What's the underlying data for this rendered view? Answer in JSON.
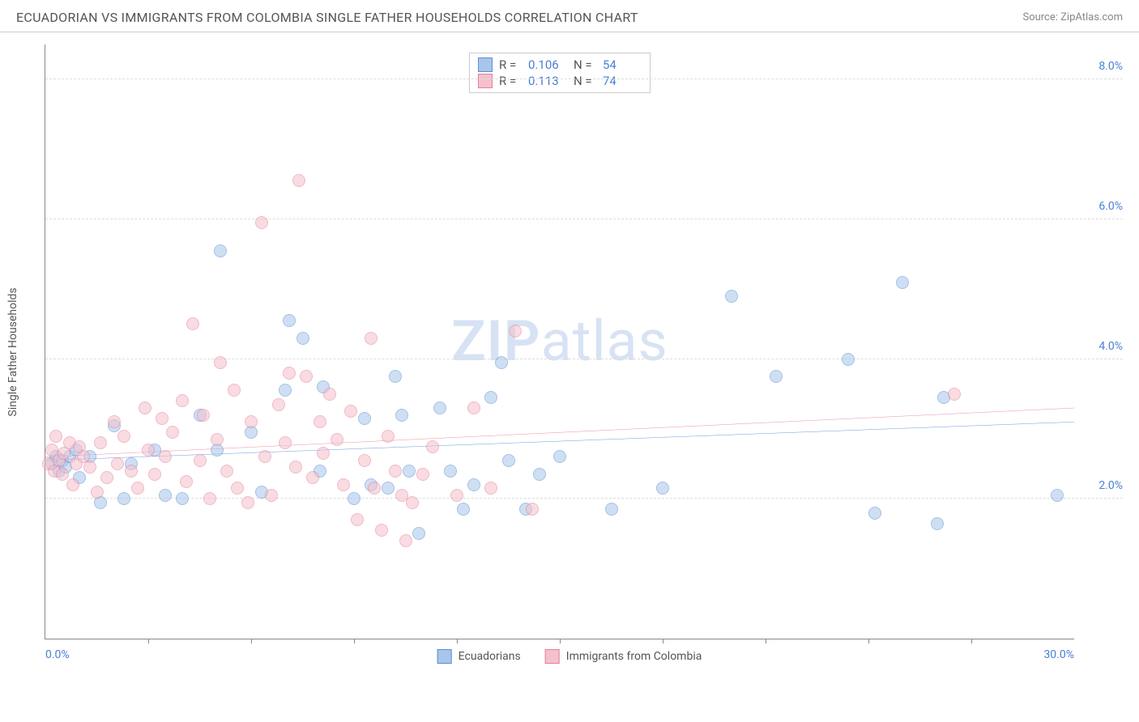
{
  "header": {
    "title": "ECUADORIAN VS IMMIGRANTS FROM COLOMBIA SINGLE FATHER HOUSEHOLDS CORRELATION CHART",
    "source": "Source: ZipAtlas.com"
  },
  "chart": {
    "type": "scatter",
    "ylabel": "Single Father Households",
    "watermark": "ZIPatlas",
    "background_color": "#ffffff",
    "grid_color": "#dddddd",
    "axis_color": "#888888",
    "tick_color": "#4a7fd4",
    "xlim": [
      0,
      30
    ],
    "ylim": [
      0,
      8.5
    ],
    "xticks": [
      {
        "v": 0,
        "label": "0.0%"
      },
      {
        "v": 30,
        "label": "30.0%"
      }
    ],
    "xtick_marks": [
      3,
      6,
      9,
      12,
      15,
      18,
      21,
      24,
      27
    ],
    "yticks": [
      {
        "v": 2,
        "label": "2.0%"
      },
      {
        "v": 4,
        "label": "4.0%"
      },
      {
        "v": 6,
        "label": "6.0%"
      },
      {
        "v": 8,
        "label": "8.0%"
      }
    ],
    "marker_radius": 8,
    "marker_opacity": 0.55,
    "series": [
      {
        "id": "ecuadorians",
        "label": "Ecuadorians",
        "fill": "#a8c5ea",
        "stroke": "#5a8fd4",
        "line_color": "#2e6fd0",
        "line_width": 2,
        "R": "0.106",
        "N": "54",
        "trend": {
          "y0": 2.55,
          "y1": 3.1
        },
        "points": [
          [
            0.2,
            2.5
          ],
          [
            0.3,
            2.6
          ],
          [
            0.4,
            2.4
          ],
          [
            0.5,
            2.55
          ],
          [
            0.6,
            2.45
          ],
          [
            0.7,
            2.6
          ],
          [
            0.9,
            2.7
          ],
          [
            1.0,
            2.3
          ],
          [
            1.3,
            2.6
          ],
          [
            1.6,
            1.95
          ],
          [
            2.0,
            3.05
          ],
          [
            2.3,
            2.0
          ],
          [
            2.5,
            2.5
          ],
          [
            3.2,
            2.7
          ],
          [
            3.5,
            2.05
          ],
          [
            4.0,
            2.0
          ],
          [
            4.5,
            3.2
          ],
          [
            5.0,
            2.7
          ],
          [
            5.1,
            5.55
          ],
          [
            6.0,
            2.95
          ],
          [
            6.3,
            2.1
          ],
          [
            7.0,
            3.55
          ],
          [
            7.1,
            4.55
          ],
          [
            7.5,
            4.3
          ],
          [
            8.0,
            2.4
          ],
          [
            8.1,
            3.6
          ],
          [
            9.0,
            2.0
          ],
          [
            9.3,
            3.15
          ],
          [
            9.5,
            2.2
          ],
          [
            10.0,
            2.15
          ],
          [
            10.2,
            3.75
          ],
          [
            10.4,
            3.2
          ],
          [
            10.6,
            2.4
          ],
          [
            10.9,
            1.5
          ],
          [
            11.5,
            3.3
          ],
          [
            11.8,
            2.4
          ],
          [
            12.2,
            1.85
          ],
          [
            12.5,
            2.2
          ],
          [
            13.0,
            3.45
          ],
          [
            13.3,
            3.95
          ],
          [
            13.5,
            2.55
          ],
          [
            14.0,
            1.85
          ],
          [
            14.4,
            2.35
          ],
          [
            15.0,
            2.6
          ],
          [
            16.5,
            1.85
          ],
          [
            18.0,
            2.15
          ],
          [
            20.0,
            4.9
          ],
          [
            21.3,
            3.75
          ],
          [
            23.4,
            4.0
          ],
          [
            24.2,
            1.8
          ],
          [
            25.0,
            5.1
          ],
          [
            26.0,
            1.65
          ],
          [
            26.2,
            3.45
          ],
          [
            29.5,
            2.05
          ]
        ]
      },
      {
        "id": "colombia",
        "label": "Immigrants from Colombia",
        "fill": "#f4c1cc",
        "stroke": "#e77f9a",
        "line_color": "#e2607f",
        "line_width": 2,
        "R": "0.113",
        "N": "74",
        "trend": {
          "y0": 2.6,
          "y1": 3.3
        },
        "points": [
          [
            0.1,
            2.5
          ],
          [
            0.2,
            2.7
          ],
          [
            0.25,
            2.4
          ],
          [
            0.3,
            2.9
          ],
          [
            0.4,
            2.55
          ],
          [
            0.5,
            2.35
          ],
          [
            0.55,
            2.65
          ],
          [
            0.7,
            2.8
          ],
          [
            0.8,
            2.2
          ],
          [
            0.9,
            2.5
          ],
          [
            1.0,
            2.75
          ],
          [
            1.1,
            2.6
          ],
          [
            1.3,
            2.45
          ],
          [
            1.5,
            2.1
          ],
          [
            1.6,
            2.8
          ],
          [
            1.8,
            2.3
          ],
          [
            2.0,
            3.1
          ],
          [
            2.1,
            2.5
          ],
          [
            2.3,
            2.9
          ],
          [
            2.5,
            2.4
          ],
          [
            2.7,
            2.15
          ],
          [
            2.9,
            3.3
          ],
          [
            3.0,
            2.7
          ],
          [
            3.2,
            2.35
          ],
          [
            3.4,
            3.15
          ],
          [
            3.5,
            2.6
          ],
          [
            3.7,
            2.95
          ],
          [
            4.0,
            3.4
          ],
          [
            4.1,
            2.25
          ],
          [
            4.3,
            4.5
          ],
          [
            4.5,
            2.55
          ],
          [
            4.6,
            3.2
          ],
          [
            4.8,
            2.0
          ],
          [
            5.0,
            2.85
          ],
          [
            5.1,
            3.95
          ],
          [
            5.3,
            2.4
          ],
          [
            5.5,
            3.55
          ],
          [
            5.6,
            2.15
          ],
          [
            5.9,
            1.95
          ],
          [
            6.0,
            3.1
          ],
          [
            6.3,
            5.95
          ],
          [
            6.4,
            2.6
          ],
          [
            6.6,
            2.05
          ],
          [
            6.8,
            3.35
          ],
          [
            7.0,
            2.8
          ],
          [
            7.1,
            3.8
          ],
          [
            7.3,
            2.45
          ],
          [
            7.4,
            6.55
          ],
          [
            7.6,
            3.75
          ],
          [
            7.8,
            2.3
          ],
          [
            8.0,
            3.1
          ],
          [
            8.1,
            2.65
          ],
          [
            8.3,
            3.5
          ],
          [
            8.5,
            2.85
          ],
          [
            8.7,
            2.2
          ],
          [
            8.9,
            3.25
          ],
          [
            9.1,
            1.7
          ],
          [
            9.3,
            2.55
          ],
          [
            9.5,
            4.3
          ],
          [
            9.6,
            2.15
          ],
          [
            9.8,
            1.55
          ],
          [
            10.0,
            2.9
          ],
          [
            10.2,
            2.4
          ],
          [
            10.4,
            2.05
          ],
          [
            10.5,
            1.4
          ],
          [
            10.7,
            1.95
          ],
          [
            11.0,
            2.35
          ],
          [
            11.3,
            2.75
          ],
          [
            12.0,
            2.05
          ],
          [
            12.5,
            3.3
          ],
          [
            13.0,
            2.15
          ],
          [
            13.7,
            4.4
          ],
          [
            14.2,
            1.85
          ],
          [
            26.5,
            3.5
          ]
        ]
      }
    ]
  }
}
